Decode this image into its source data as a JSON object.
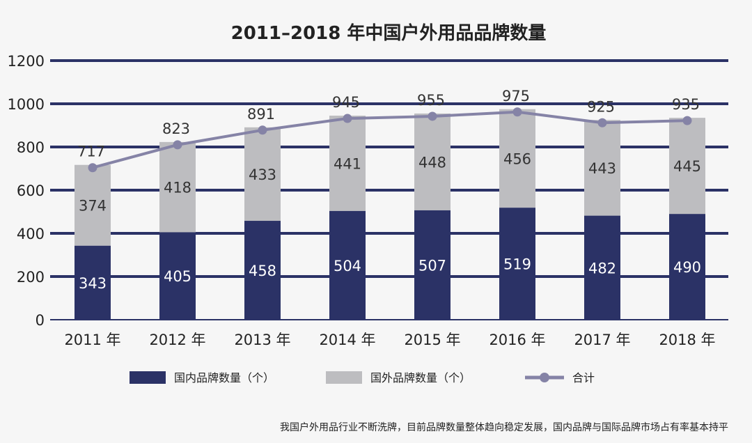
{
  "chart_data": {
    "type": "bar",
    "title": "2011–2018 年中国户外用品品牌数量",
    "categories": [
      "2011 年",
      "2012 年",
      "2013 年",
      "2014 年",
      "2015 年",
      "2016 年",
      "2017 年",
      "2018 年"
    ],
    "series": [
      {
        "name": "国内品牌数量（个）",
        "values": [
          343,
          405,
          458,
          504,
          507,
          519,
          482,
          490
        ],
        "color": "#2b3266"
      },
      {
        "name": "国外品牌数量（个）",
        "values": [
          374,
          418,
          433,
          441,
          448,
          456,
          443,
          445
        ],
        "color": "#bdbdc0"
      }
    ],
    "line": {
      "name": "合计",
      "values": [
        717,
        823,
        891,
        945,
        955,
        975,
        925,
        935
      ],
      "color": "#8583a6"
    },
    "stacked": true,
    "ylim": [
      0,
      1200
    ],
    "yticks": [
      0,
      200,
      400,
      600,
      800,
      1000,
      1200
    ],
    "grid": true,
    "legend_position": "bottom"
  },
  "footnote": "我国户外用品行业不断洗牌，目前品牌数量整体趋向稳定发展，国内品牌与国际品牌市场占有率基本持平"
}
